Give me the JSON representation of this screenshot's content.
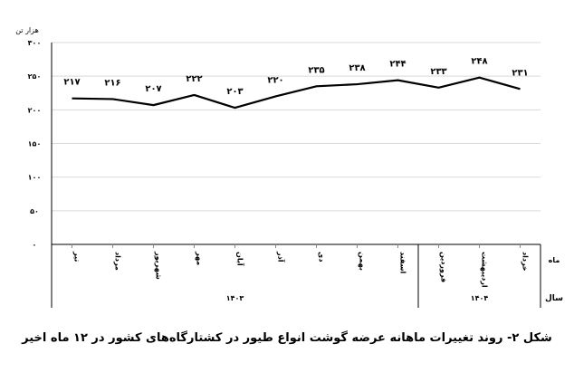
{
  "chart_data": {
    "type": "line",
    "ylabel": "هزار تن",
    "ylim": [
      0,
      300
    ],
    "yticks": [
      0,
      50,
      100,
      150,
      200,
      250,
      300
    ],
    "grid": true,
    "categories": [
      "تیر",
      "مرداد",
      "شهریور",
      "مهر",
      "آبان",
      "آذر",
      "دی",
      "بهمن",
      "اسفند",
      "فروردین",
      "اردیبهشت",
      "خرداد"
    ],
    "values": [
      217,
      216,
      207,
      222,
      203,
      220,
      235,
      238,
      244,
      233,
      248,
      231
    ],
    "years": [
      {
        "label": "۱۴۰۳",
        "span": 9
      },
      {
        "label": "۱۴۰۴",
        "span": 3
      }
    ],
    "month_axis_label": "ماه",
    "year_axis_label": "سال",
    "series_color": "#000000"
  },
  "caption": "شکل ۲- روند تغییرات ماهانه عرضه گوشت انواع طیور در کشتارگاه‌های کشور در ۱۲ ماه اخیر"
}
